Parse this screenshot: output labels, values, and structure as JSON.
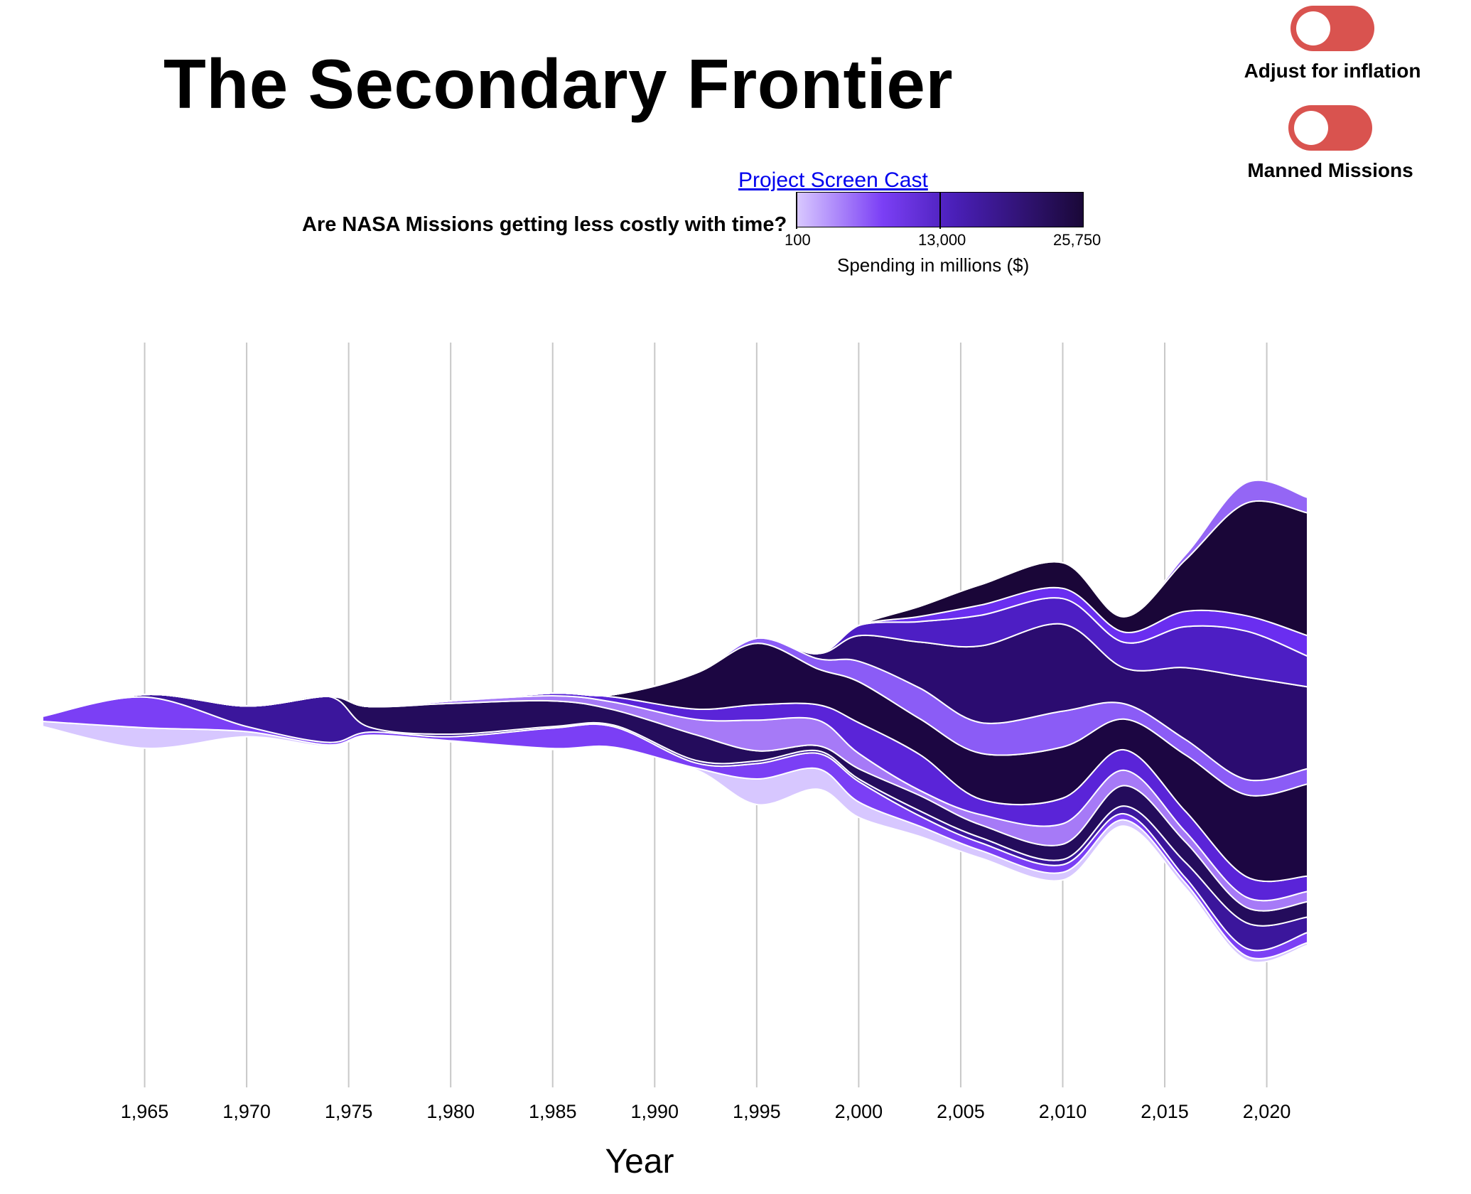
{
  "page": {
    "title": "The Secondary Frontier",
    "question": "Are NASA Missions getting less costly with time?",
    "screencast_link": "Project Screen Cast"
  },
  "toggles": [
    {
      "label": "Adjust for inflation",
      "on": false,
      "color": "#d9534f"
    },
    {
      "label": "Manned Missions",
      "on": false,
      "color": "#d9534f"
    }
  ],
  "legend": {
    "title": "Spending in millions ($)",
    "min_label": "100",
    "mid_label": "13,000",
    "max_label": "25,750",
    "min": 100,
    "mid": 13000,
    "max": 25750,
    "colors": [
      "#d9c9ff",
      "#7b3ff5",
      "#4a1fb8",
      "#1a0838"
    ]
  },
  "chart_data": {
    "type": "area",
    "subtype": "streamgraph",
    "xlabel": "Year",
    "x_ticks": [
      "1,965",
      "1,970",
      "1,975",
      "1,980",
      "1,985",
      "1,990",
      "1,995",
      "2,000",
      "2,005",
      "2,010",
      "2,015",
      "2,020"
    ],
    "x": [
      1960,
      1965,
      1970,
      1974,
      1976,
      1980,
      1985,
      1988,
      1992,
      1995,
      1998,
      2000,
      2003,
      2006,
      2010,
      2013,
      2016,
      2019,
      2022
    ],
    "grid": true,
    "series": [
      {
        "color": "#d7c7ff",
        "values": [
          1,
          4,
          1,
          0.3,
          0.2,
          0.2,
          0.2,
          0.2,
          0.3,
          5,
          4,
          3,
          2,
          1.5,
          1.5,
          1.2,
          1,
          0.8,
          0.5
        ]
      },
      {
        "color": "#7b3ff5",
        "values": [
          1,
          6,
          1,
          0.5,
          0.6,
          0.8,
          4,
          4,
          1,
          3,
          3,
          4,
          2,
          1.5,
          1.5,
          1.2,
          1,
          1.5,
          2
        ]
      },
      {
        "color": "#3b169c",
        "values": [
          0,
          0.5,
          4,
          9,
          1,
          0.5,
          0.3,
          0.3,
          0.5,
          0.5,
          0.5,
          0.5,
          1,
          1,
          1,
          1.5,
          3,
          5,
          3
        ]
      },
      {
        "color": "#240c5c",
        "values": [
          0,
          0,
          0,
          0,
          4,
          6,
          5,
          3,
          5,
          2,
          1,
          2,
          3,
          2.5,
          3,
          4,
          4,
          3,
          3
        ]
      },
      {
        "color": "#a67af7",
        "values": [
          0,
          0,
          0,
          0,
          0,
          0.5,
          1,
          1.5,
          3,
          6,
          5,
          3,
          1,
          2,
          4,
          3,
          2,
          2,
          2
        ]
      },
      {
        "color": "#5a24d8",
        "values": [
          0,
          0,
          0,
          0,
          0,
          0,
          0.5,
          1,
          2,
          3,
          3,
          6,
          7,
          3,
          5,
          4,
          4,
          4,
          3
        ]
      },
      {
        "color": "#1c0642",
        "values": [
          0,
          0,
          0,
          0,
          0,
          0,
          0,
          0.5,
          7,
          12,
          7,
          8,
          7,
          9,
          10,
          6,
          11,
          16,
          18
        ]
      },
      {
        "color": "#8b5cf6",
        "values": [
          0,
          0,
          0,
          0,
          0,
          0,
          0,
          0,
          0,
          1,
          2,
          4,
          6,
          6,
          7,
          3,
          3,
          3,
          3
        ]
      },
      {
        "color": "#2b0c70",
        "values": [
          0,
          0,
          0,
          0,
          0,
          0,
          0,
          0,
          0,
          0,
          1,
          5,
          9,
          15,
          17,
          7,
          14,
          20,
          16
        ]
      },
      {
        "color": "#4d1ec4",
        "values": [
          0,
          0,
          0,
          0,
          0,
          0,
          0,
          0,
          0,
          0,
          0,
          2,
          4,
          6,
          5,
          5,
          8,
          9,
          6
        ]
      },
      {
        "color": "#6a2ef0",
        "values": [
          0,
          0,
          0,
          0,
          0,
          0,
          0,
          0,
          0,
          0,
          0,
          0,
          1,
          2,
          2,
          2,
          3,
          3,
          4
        ]
      },
      {
        "color": "#1a0638",
        "values": [
          0,
          0,
          0,
          0,
          0,
          0,
          0,
          0,
          0,
          0,
          0,
          0,
          2,
          4,
          5,
          3,
          10,
          22,
          24
        ]
      },
      {
        "color": "#9466f5",
        "values": [
          0,
          0,
          0,
          0,
          0,
          0,
          0,
          0,
          0,
          0,
          0,
          0,
          0,
          0,
          0,
          0,
          1,
          4,
          3
        ]
      }
    ]
  }
}
